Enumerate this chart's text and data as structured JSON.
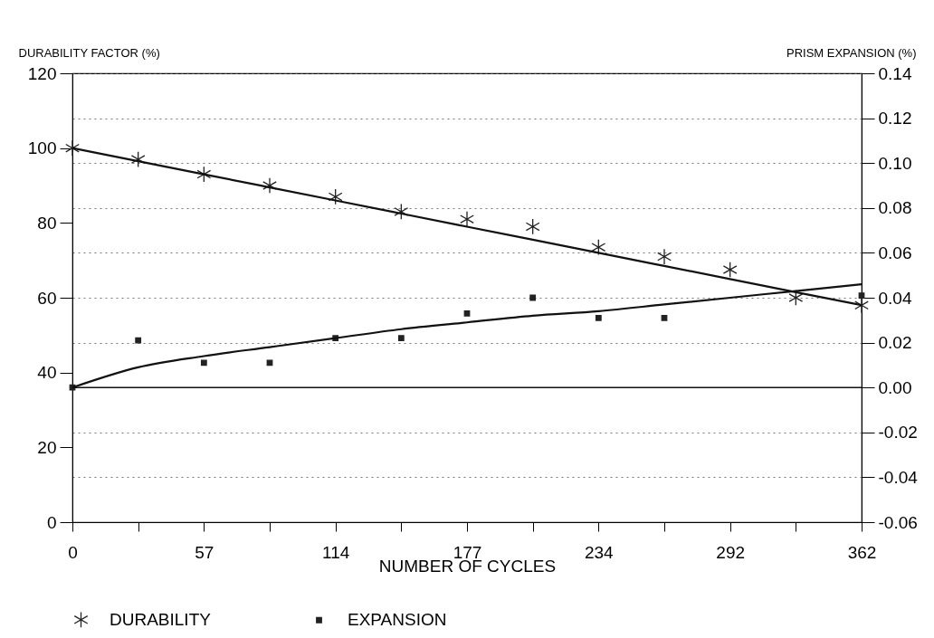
{
  "chart_data": {
    "type": "scatter",
    "xlabel": "NUMBER OF CYCLES",
    "ylabel": "DURABILITY FACTOR (%)",
    "y2label": "PRISM EXPANSION (%)",
    "categories": [
      "0",
      null,
      "57",
      null,
      "114",
      null,
      "177",
      null,
      "234",
      null,
      "292",
      null,
      "362"
    ],
    "series": [
      {
        "name": "DURABILITY",
        "marker": "cross",
        "color": "#222222",
        "values": [
          100,
          97,
          93,
          90,
          87,
          83,
          81,
          79,
          73.5,
          71,
          67.5,
          60,
          58
        ]
      },
      {
        "type": "line",
        "marker": "none",
        "line_style": "solid",
        "color": "#111111",
        "values": [
          100,
          96.5,
          93,
          89.5,
          86,
          82.5,
          79,
          75.5,
          72,
          68.5,
          65,
          61.5,
          58
        ]
      },
      {
        "name": "EXPANSION",
        "marker": "square",
        "axis": "y2",
        "color": "#222222",
        "values": [
          0.0,
          0.021,
          0.011,
          0.011,
          0.022,
          0.022,
          0.033,
          0.04,
          0.031,
          0.031,
          null,
          null,
          0.041
        ]
      },
      {
        "type": "line",
        "marker": "none",
        "line_style": "solid",
        "axis": "y2",
        "color": "#111111",
        "values": [
          0.0,
          0.009,
          0.014,
          0.018,
          0.022,
          0.026,
          0.029,
          0.032,
          0.034,
          0.037,
          0.04,
          0.043,
          0.046
        ]
      }
    ],
    "ylim": [
      0,
      120
    ],
    "yticks": [
      0,
      20,
      40,
      60,
      80,
      100,
      120
    ],
    "y2lim": [
      -0.06,
      0.14
    ],
    "y2ticks": [
      -0.06,
      -0.04,
      -0.02,
      {
        "value": 0,
        "label": "0.00"
      },
      0.02,
      0.04,
      0.06,
      0.08,
      {
        "value": 0.1,
        "label": "0.10"
      },
      0.12,
      0.14
    ],
    "ref_lines": [
      {
        "axis": "y2",
        "value": 0,
        "color": "#111111"
      }
    ],
    "grid": "y2",
    "legend": "bottom"
  }
}
